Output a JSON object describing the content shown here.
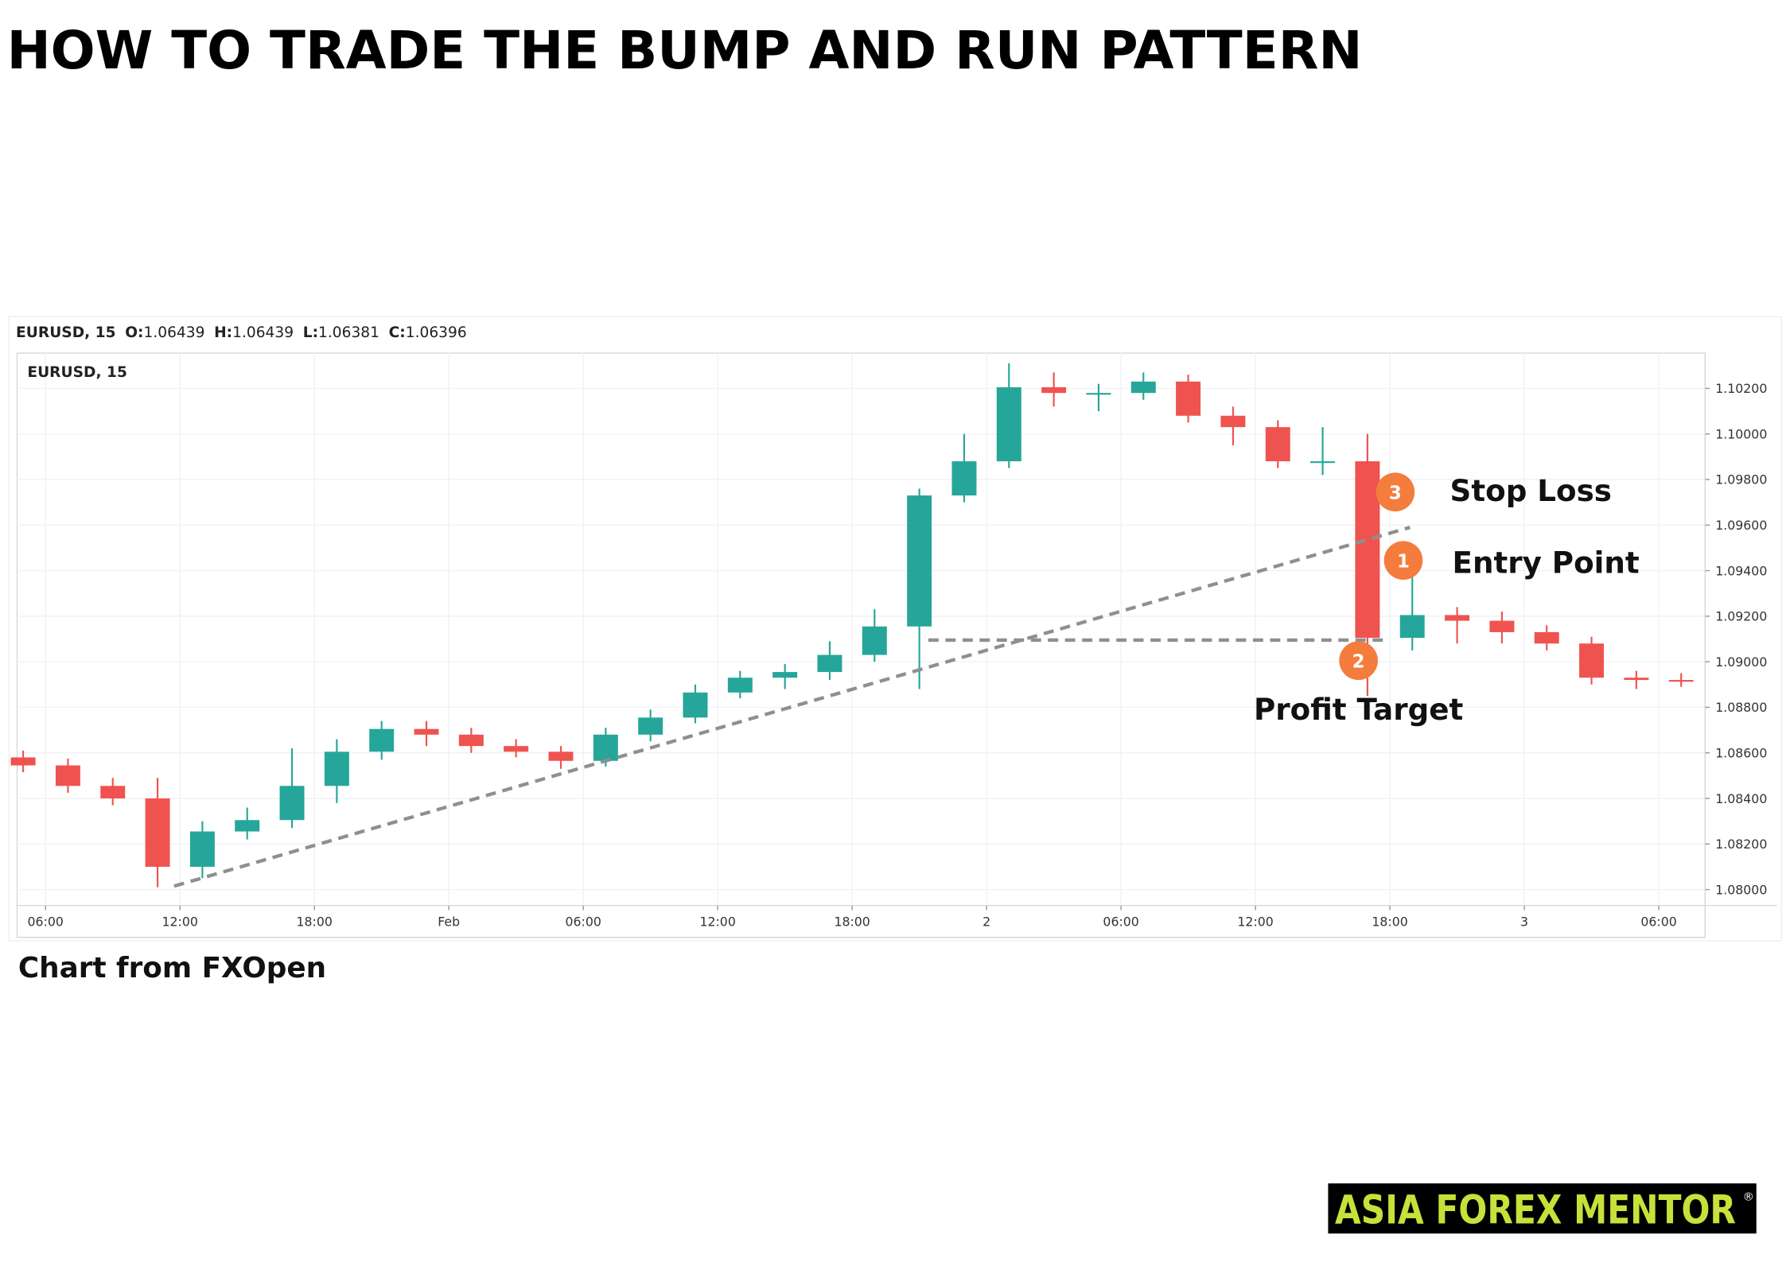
{
  "title": "HOW TO TRADE THE BUMP AND RUN PATTERN",
  "legend_bar": {
    "symbol": "EURUSD, 15",
    "fields": [
      {
        "label": "O:",
        "value": "1.06439"
      },
      {
        "label": "H:",
        "value": "1.06439"
      },
      {
        "label": "L:",
        "value": "1.06381"
      },
      {
        "label": "C:",
        "value": "1.06396"
      }
    ]
  },
  "chart_data": {
    "type": "candlestick",
    "label": "EURUSD, 15",
    "up_color": "#26a69a",
    "down_color": "#ef5350",
    "grid": true,
    "x": [
      5,
      7,
      9,
      11,
      13,
      15,
      17,
      19,
      21,
      23,
      25,
      27,
      29,
      31,
      33,
      35,
      37,
      39,
      41,
      43,
      45,
      47,
      49,
      51,
      53,
      55,
      57,
      59,
      61,
      63,
      65,
      67,
      69,
      71,
      73,
      75,
      77,
      79
    ],
    "open": [
      1.0858,
      1.08545,
      1.08455,
      1.084,
      1.081,
      1.08255,
      1.08305,
      1.08455,
      1.08605,
      1.08705,
      1.0868,
      1.0863,
      1.08605,
      1.08565,
      1.0868,
      1.08755,
      1.08865,
      1.0893,
      1.08955,
      1.0903,
      1.09155,
      1.0973,
      1.0988,
      1.10205,
      1.1018,
      1.1018,
      1.1023,
      1.1008,
      1.1003,
      1.0988,
      1.0988,
      1.09105,
      1.09205,
      1.0918,
      1.0913,
      1.0908,
      1.0893,
      1.0892
    ],
    "high": [
      1.0861,
      1.08575,
      1.0849,
      1.0849,
      1.083,
      1.0836,
      1.0862,
      1.0866,
      1.0874,
      1.0874,
      1.0871,
      1.0866,
      1.0863,
      1.0871,
      1.0879,
      1.089,
      1.0896,
      1.0899,
      1.0909,
      1.0923,
      1.0976,
      1.1,
      1.1031,
      1.1027,
      1.1022,
      1.1027,
      1.1026,
      1.1012,
      1.1006,
      1.1003,
      1.1,
      1.0946,
      1.0924,
      1.0922,
      1.0916,
      1.0911,
      1.0896,
      1.0895
    ],
    "low": [
      1.08515,
      1.08425,
      1.0837,
      1.0801,
      1.0805,
      1.0822,
      1.0827,
      1.0838,
      1.0857,
      1.0863,
      1.086,
      1.0858,
      1.0853,
      1.0854,
      1.0865,
      1.0873,
      1.0884,
      1.0888,
      1.0892,
      1.09,
      1.0888,
      1.097,
      1.0985,
      1.1012,
      1.101,
      1.1015,
      1.1005,
      1.0995,
      1.0985,
      1.0982,
      1.0885,
      1.0905,
      1.0908,
      1.0908,
      1.0905,
      1.089,
      1.0888,
      1.0889
    ],
    "close": [
      1.08545,
      1.08455,
      1.084,
      1.081,
      1.08255,
      1.08305,
      1.08455,
      1.08605,
      1.08705,
      1.0868,
      1.0863,
      1.08605,
      1.08565,
      1.0868,
      1.08755,
      1.08865,
      1.0893,
      1.08955,
      1.0903,
      1.09155,
      1.0973,
      1.0988,
      1.10205,
      1.1018,
      1.1018,
      1.1023,
      1.1008,
      1.1003,
      1.0988,
      1.0988,
      1.09105,
      1.09205,
      1.0918,
      1.0913,
      1.0908,
      1.0893,
      1.0892,
      1.08915
    ],
    "xlim": [
      4.73,
      80.07
    ],
    "ylim": [
      1.0793,
      1.10355
    ],
    "xticks": [
      {
        "value": 6,
        "label": "06:00"
      },
      {
        "value": 12,
        "label": "12:00"
      },
      {
        "value": 18,
        "label": "18:00"
      },
      {
        "value": 24,
        "label": "Feb"
      },
      {
        "value": 30,
        "label": "06:00"
      },
      {
        "value": 36,
        "label": "12:00"
      },
      {
        "value": 42,
        "label": "18:00"
      },
      {
        "value": 48,
        "label": "2"
      },
      {
        "value": 54,
        "label": "06:00"
      },
      {
        "value": 60,
        "label": "12:00"
      },
      {
        "value": 66,
        "label": "18:00"
      },
      {
        "value": 72,
        "label": "3"
      },
      {
        "value": 78,
        "label": "06:00"
      }
    ],
    "yticks": [
      {
        "value": 1.08,
        "label": "1.08000"
      },
      {
        "value": 1.082,
        "label": "1.08200"
      },
      {
        "value": 1.084,
        "label": "1.08400"
      },
      {
        "value": 1.086,
        "label": "1.08600"
      },
      {
        "value": 1.088,
        "label": "1.08800"
      },
      {
        "value": 1.09,
        "label": "1.09000"
      },
      {
        "value": 1.092,
        "label": "1.09200"
      },
      {
        "value": 1.094,
        "label": "1.09400"
      },
      {
        "value": 1.096,
        "label": "1.09600"
      },
      {
        "value": 1.098,
        "label": "1.09800"
      },
      {
        "value": 1.1,
        "label": "1.10000"
      },
      {
        "value": 1.102,
        "label": "1.10200"
      }
    ],
    "lines": [
      {
        "x": [
          11.74,
          66.9
        ],
        "y": [
          1.08015,
          1.0959
        ]
      },
      {
        "x": [
          45.4,
          65.7
        ],
        "y": [
          1.09095,
          1.09095
        ]
      }
    ],
    "markers": [
      {
        "label": "3",
        "x": 66.24,
        "y": 1.09745,
        "text": "Stop Loss"
      },
      {
        "label": "1",
        "x": 66.6,
        "y": 1.09445,
        "text": "Entry Point"
      },
      {
        "label": "2",
        "x": 64.6,
        "y": 1.09005,
        "text": "Profit Target"
      }
    ]
  },
  "source": "Chart from FXOpen",
  "logo": {
    "text": "ASIA FOREX MENTOR",
    "mark": "®"
  }
}
